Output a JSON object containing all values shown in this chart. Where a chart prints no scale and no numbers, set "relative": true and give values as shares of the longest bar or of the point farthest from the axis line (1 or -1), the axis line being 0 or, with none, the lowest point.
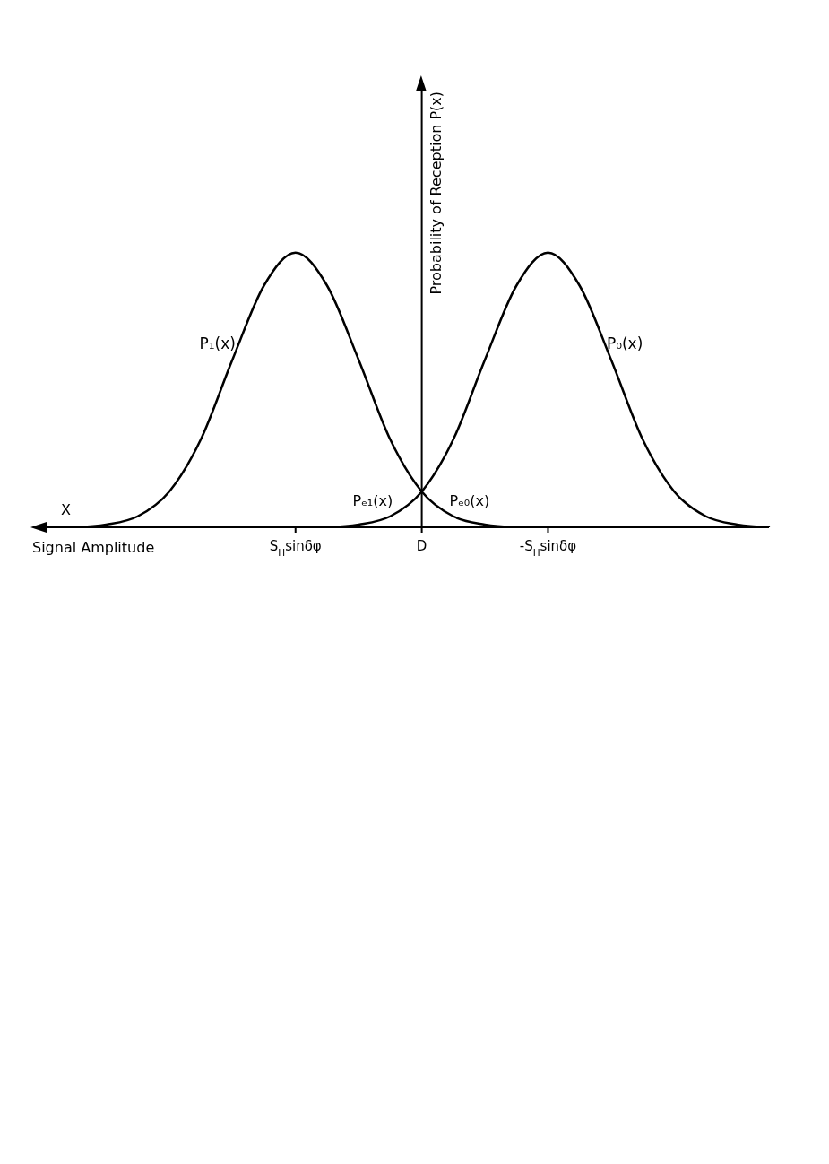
{
  "chart_data": {
    "type": "line",
    "relative": true,
    "xlabel": "Signal Amplitude",
    "ylabel": "Probability of Reception P(x)",
    "categories": [
      null,
      null,
      null,
      null,
      null,
      null,
      null,
      null,
      "S$_{H}$sinδφ",
      null,
      null,
      null,
      "D",
      null,
      null,
      null,
      "-S$_{H}$sinδφ",
      null,
      null,
      null,
      null,
      null,
      null,
      null
    ],
    "ref_lines": [
      {
        "axis": "x",
        "value": "D",
        "color": "#000000"
      }
    ],
    "series": [
      {
        "name": "P₁(x)",
        "color": "#000000",
        "values": [
          null,
          0,
          0.01,
          0.04,
          0.13,
          0.32,
          0.61,
          0.88,
          1,
          0.88,
          0.61,
          0.32,
          0.13,
          0.04,
          0.01,
          0,
          null,
          null,
          null,
          null,
          null,
          null,
          null,
          null
        ]
      },
      {
        "name": "P₀(x)",
        "color": "#000000",
        "values": [
          null,
          null,
          null,
          null,
          null,
          null,
          null,
          null,
          null,
          0,
          0.01,
          0.04,
          0.13,
          0.32,
          0.61,
          0.88,
          1,
          0.88,
          0.61,
          0.32,
          0.13,
          0.04,
          0.01,
          0
        ]
      }
    ],
    "annotations": [
      "X",
      "Pₑ₁(x)",
      "Pₑ₀(x)"
    ]
  }
}
